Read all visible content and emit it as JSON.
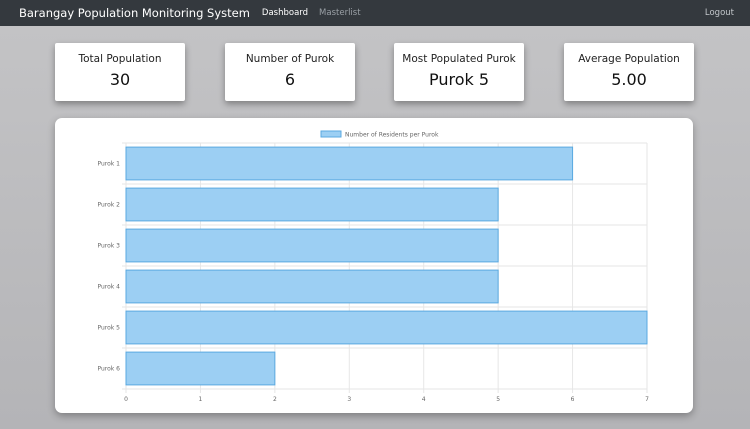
{
  "navbar": {
    "brand": "Barangay Population Monitoring System",
    "links": [
      {
        "label": "Dashboard",
        "active": true
      },
      {
        "label": "Masterlist",
        "active": false
      }
    ],
    "logout_label": "Logout"
  },
  "cards": [
    {
      "label": "Total Population",
      "value": "30"
    },
    {
      "label": "Number of Purok",
      "value": "6"
    },
    {
      "label": "Most Populated Purok",
      "value": "Purok 5"
    },
    {
      "label": "Average Population",
      "value": "5.00"
    }
  ],
  "chart_data": {
    "type": "bar",
    "orientation": "horizontal",
    "categories": [
      "Purok 1",
      "Purok 2",
      "Purok 3",
      "Purok 4",
      "Purok 5",
      "Purok 6"
    ],
    "series": [
      {
        "name": "Number of Residents per Purok",
        "values": [
          6,
          5,
          5,
          5,
          7,
          2
        ]
      }
    ],
    "xlim": [
      0,
      7
    ],
    "x_ticks": [
      0,
      1,
      2,
      3,
      4,
      5,
      6,
      7
    ],
    "grid": true,
    "legend_position": "top",
    "colors": {
      "bar_fill": "#9ccff3",
      "bar_border": "#5aa9e0"
    }
  }
}
